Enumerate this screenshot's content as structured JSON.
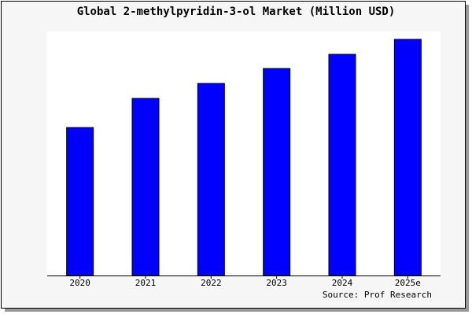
{
  "chart_data": {
    "type": "bar",
    "title": "Global 2-methylpyridin-3-ol Market (Million USD)",
    "categories": [
      "2020",
      "2021",
      "2022",
      "2023",
      "2024",
      "2025e"
    ],
    "values": [
      188,
      225,
      244,
      263,
      281,
      300
    ],
    "color": "#0000ff",
    "ylim": [
      0,
      310
    ],
    "source": "Source: Prof Research"
  }
}
